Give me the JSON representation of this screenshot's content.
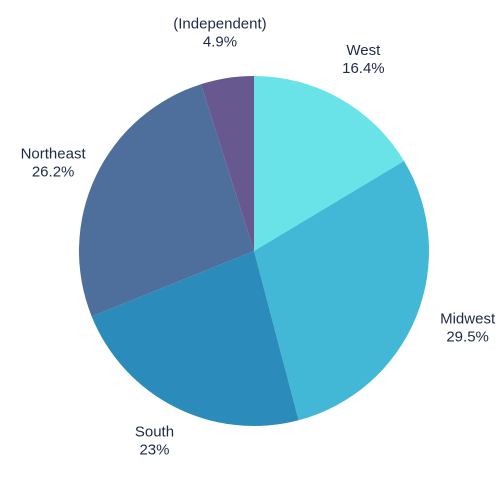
{
  "chart_data": {
    "type": "pie",
    "title": "",
    "slices": [
      {
        "label": "West",
        "value": 16.4,
        "display": "16.4%",
        "color": "#6ae3e8"
      },
      {
        "label": "Midwest",
        "value": 29.5,
        "display": "29.5%",
        "color": "#43b8d6"
      },
      {
        "label": "South",
        "value": 23,
        "display": "23%",
        "color": "#2b8bba"
      },
      {
        "label": "Northeast",
        "value": 26.2,
        "display": "26.2%",
        "color": "#4e6f9c"
      },
      {
        "label": "(Independent)",
        "value": 4.9,
        "display": "4.9%",
        "color": "#67598f"
      }
    ],
    "start_angle": "top",
    "direction": "clockwise"
  }
}
